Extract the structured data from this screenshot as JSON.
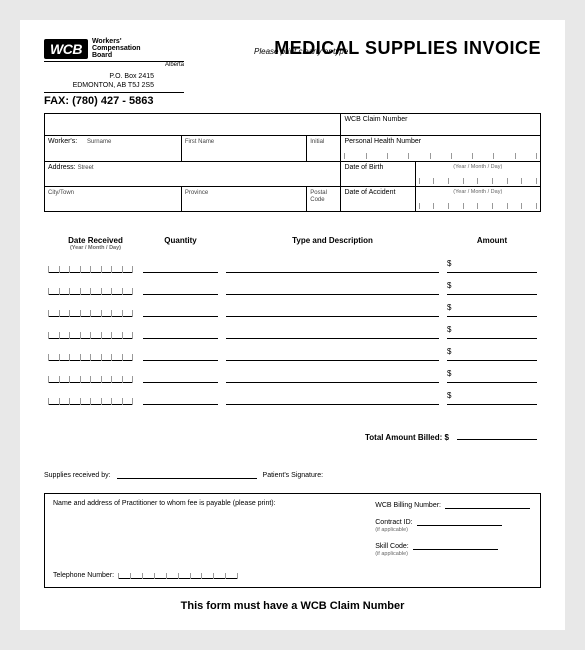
{
  "logo": {
    "badge": "WCB",
    "line1": "Workers'",
    "line2": "Compensation",
    "line3": "Board",
    "region": "Alberta"
  },
  "address": {
    "po": "P.O. Box 2415",
    "city": "EDMONTON, AB  T5J 2S5"
  },
  "fax": {
    "label": "FAX:",
    "number": "(780) 427 - 5863"
  },
  "title": "MEDICAL SUPPLIES  INVOICE",
  "instruction": "Please print clearly or type",
  "fields": {
    "claim": "WCB  Claim Number",
    "workers": "Worker's:",
    "surname": "Surname",
    "firstname": "First Name",
    "initial": "Initial",
    "phn": "Personal Health Number",
    "address": "Address:",
    "street": "Street",
    "dob": "Date of Birth",
    "citytown": "City/Town",
    "province": "Province",
    "postal": "Postal Code",
    "doa": "Date of Accident",
    "datefmt": "(Year / Month / Day)"
  },
  "cols": {
    "date": "Date Received",
    "datefmt": "(Year / Month / Day)",
    "qty": "Quantity",
    "desc": "Type and Description",
    "amt": "Amount"
  },
  "dollar": "$",
  "rows": 7,
  "total": "Total Amount Billed:",
  "sig": {
    "received": "Supplies received by:",
    "patient": "Patient's Signature:"
  },
  "pract": {
    "heading": "Name and address of Practitioner to whom fee is payable (please print):",
    "billing": "WCB Billing Number:",
    "contract": "Contract ID:",
    "skill": "Skill Code:",
    "ifapp": "(if applicable)",
    "tel": "Telephone Number:"
  },
  "footer": "This form must have a WCB Claim Number",
  "colors": {
    "text": "#000000",
    "bg": "#ffffff",
    "page_bg": "#e8e8e8",
    "tick": "#999999"
  }
}
